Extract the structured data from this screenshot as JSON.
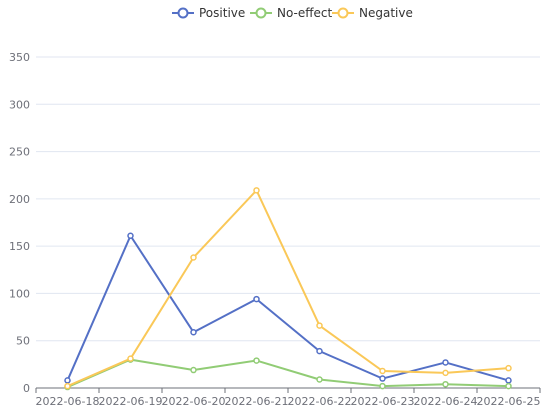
{
  "chart_data": {
    "type": "line",
    "title": "",
    "xlabel": "",
    "ylabel": "",
    "categories": [
      "2022-06-18",
      "2022-06-19",
      "2022-06-20",
      "2022-06-21",
      "2022-06-22",
      "2022-06-23",
      "2022-06-24",
      "2022-06-25"
    ],
    "ylim": [
      0,
      350
    ],
    "yticks": [
      0,
      50,
      100,
      150,
      200,
      250,
      300,
      350
    ],
    "grid": true,
    "legend_position": "top",
    "series": [
      {
        "name": "Positive",
        "color": "#5470c6",
        "values": [
          8,
          161,
          59,
          94,
          39,
          10,
          27,
          8
        ]
      },
      {
        "name": "No-effect",
        "color": "#91cc75",
        "values": [
          1,
          30,
          19,
          29,
          9,
          2,
          4,
          2
        ]
      },
      {
        "name": "Negative",
        "color": "#fac858",
        "values": [
          2,
          31,
          138,
          209,
          66,
          18,
          16,
          21
        ]
      }
    ]
  }
}
